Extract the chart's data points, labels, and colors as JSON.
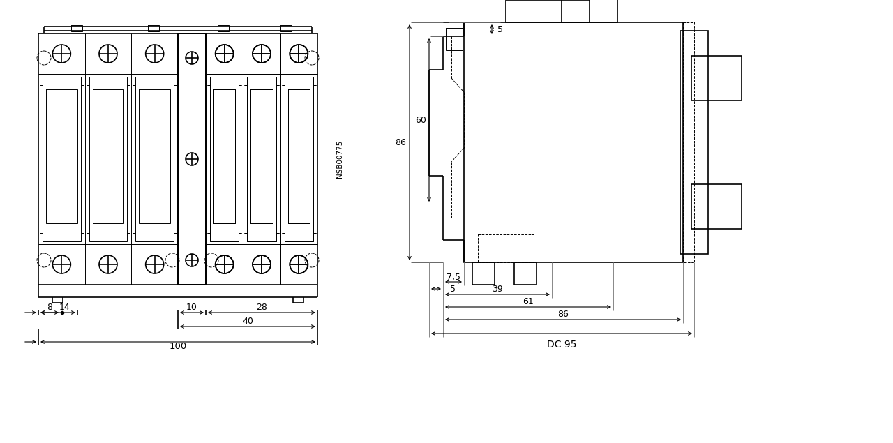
{
  "line_color": "#000000",
  "bg_color": "#ffffff",
  "line_width": 1.2,
  "thin_line": 0.7,
  "front_dims": {
    "label_8": "8",
    "label_14": "14",
    "label_10": "10",
    "label_28": "28",
    "label_40": "40",
    "label_100": "100"
  },
  "side_dims": {
    "label_5_top": "5",
    "label_86_vert": "86",
    "label_60_vert": "60",
    "label_5_bot": "5",
    "label_7p5": "7,5",
    "label_39": "39",
    "label_61": "61",
    "label_86_horiz": "86",
    "label_dc95": "DC 95"
  },
  "watermark": "NSB00775"
}
